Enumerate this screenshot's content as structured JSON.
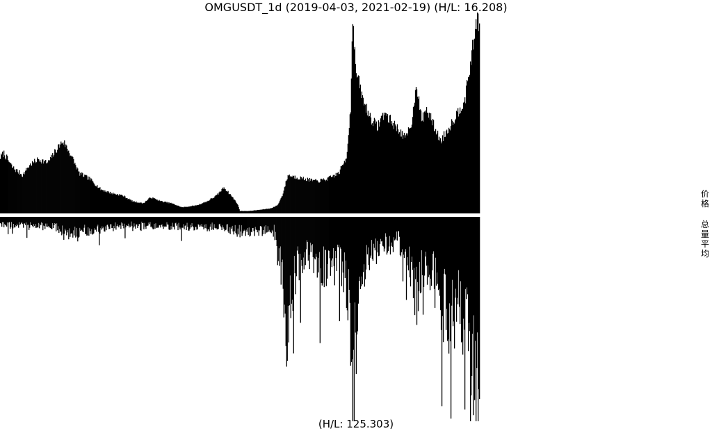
{
  "header": {
    "title": "OMGUSDT_1d (2019-04-03, 2021-02-19) (H/L: 16.208)",
    "bottom_label": "(H/L: 125.303)"
  },
  "side_labels": {
    "price": "价格",
    "volume": "总量平均"
  },
  "colors": {
    "bars": "#000000",
    "background": "#ffffff"
  },
  "chart_data": [
    {
      "type": "area",
      "panel": "price",
      "x_start": "2019-04-03",
      "x_end": "2021-02-19",
      "high_low_ratio": 16.208,
      "knots": [
        [
          "2019-04-03",
          0.28
        ],
        [
          "2019-04-08",
          0.3
        ],
        [
          "2019-04-20",
          0.23
        ],
        [
          "2019-05-05",
          0.19
        ],
        [
          "2019-05-15",
          0.24
        ],
        [
          "2019-05-28",
          0.27
        ],
        [
          "2019-06-10",
          0.25
        ],
        [
          "2019-06-25",
          0.33
        ],
        [
          "2019-07-02",
          0.36
        ],
        [
          "2019-07-12",
          0.3
        ],
        [
          "2019-07-25",
          0.2
        ],
        [
          "2019-08-10",
          0.17
        ],
        [
          "2019-08-25",
          0.12
        ],
        [
          "2019-09-10",
          0.1
        ],
        [
          "2019-09-25",
          0.09
        ],
        [
          "2019-10-10",
          0.06
        ],
        [
          "2019-10-25",
          0.05
        ],
        [
          "2019-11-05",
          0.08
        ],
        [
          "2019-11-20",
          0.06
        ],
        [
          "2019-12-05",
          0.05
        ],
        [
          "2019-12-20",
          0.03
        ],
        [
          "2020-01-10",
          0.04
        ],
        [
          "2020-01-25",
          0.06
        ],
        [
          "2020-02-08",
          0.09
        ],
        [
          "2020-02-18",
          0.13
        ],
        [
          "2020-02-28",
          0.09
        ],
        [
          "2020-03-08",
          0.05
        ],
        [
          "2020-03-12",
          0.012
        ],
        [
          "2020-03-25",
          0.012
        ],
        [
          "2020-04-10",
          0.018
        ],
        [
          "2020-04-25",
          0.025
        ],
        [
          "2020-05-05",
          0.04
        ],
        [
          "2020-05-12",
          0.09
        ],
        [
          "2020-05-20",
          0.19
        ],
        [
          "2020-06-01",
          0.18
        ],
        [
          "2020-06-15",
          0.17
        ],
        [
          "2020-07-01",
          0.16
        ],
        [
          "2020-07-15",
          0.17
        ],
        [
          "2020-08-01",
          0.2
        ],
        [
          "2020-08-12",
          0.28
        ],
        [
          "2020-08-18",
          0.52
        ],
        [
          "2020-08-21",
          1.0
        ],
        [
          "2020-08-25",
          0.72
        ],
        [
          "2020-09-05",
          0.56
        ],
        [
          "2020-09-15",
          0.48
        ],
        [
          "2020-09-25",
          0.43
        ],
        [
          "2020-10-05",
          0.5
        ],
        [
          "2020-10-15",
          0.46
        ],
        [
          "2020-10-25",
          0.42
        ],
        [
          "2020-11-05",
          0.37
        ],
        [
          "2020-11-15",
          0.47
        ],
        [
          "2020-11-20",
          0.66
        ],
        [
          "2020-11-28",
          0.46
        ],
        [
          "2020-12-05",
          0.52
        ],
        [
          "2020-12-15",
          0.44
        ],
        [
          "2020-12-25",
          0.36
        ],
        [
          "2021-01-05",
          0.42
        ],
        [
          "2021-01-15",
          0.48
        ],
        [
          "2021-01-22",
          0.52
        ],
        [
          "2021-01-30",
          0.58
        ],
        [
          "2021-02-05",
          0.72
        ],
        [
          "2021-02-10",
          0.84
        ],
        [
          "2021-02-15",
          0.97
        ],
        [
          "2021-02-19",
          0.96
        ]
      ]
    },
    {
      "type": "bar",
      "panel": "volume",
      "x_start": "2019-04-03",
      "x_end": "2021-02-19",
      "high_low_ratio": 125.303,
      "knots": [
        [
          "2019-04-03",
          0.04
        ],
        [
          "2019-06-25",
          0.05
        ],
        [
          "2019-07-02",
          0.08
        ],
        [
          "2019-10-01",
          0.04
        ],
        [
          "2020-02-15",
          0.05
        ],
        [
          "2020-03-12",
          0.07
        ],
        [
          "2020-04-30",
          0.07
        ],
        [
          "2020-05-12",
          0.3
        ],
        [
          "2020-05-20",
          0.58
        ],
        [
          "2020-05-30",
          0.25
        ],
        [
          "2020-06-20",
          0.18
        ],
        [
          "2020-07-15",
          0.26
        ],
        [
          "2020-08-01",
          0.22
        ],
        [
          "2020-08-15",
          0.34
        ],
        [
          "2020-08-21",
          0.88
        ],
        [
          "2020-08-28",
          0.4
        ],
        [
          "2020-09-10",
          0.2
        ],
        [
          "2020-10-01",
          0.14
        ],
        [
          "2020-10-25",
          0.12
        ],
        [
          "2020-11-10",
          0.2
        ],
        [
          "2020-11-20",
          0.38
        ],
        [
          "2020-12-01",
          0.24
        ],
        [
          "2020-12-20",
          0.32
        ],
        [
          "2021-01-05",
          0.52
        ],
        [
          "2021-01-20",
          0.44
        ],
        [
          "2021-02-05",
          0.6
        ],
        [
          "2021-02-12",
          0.82
        ],
        [
          "2021-02-16",
          1.0
        ],
        [
          "2021-02-19",
          0.9
        ]
      ]
    }
  ]
}
